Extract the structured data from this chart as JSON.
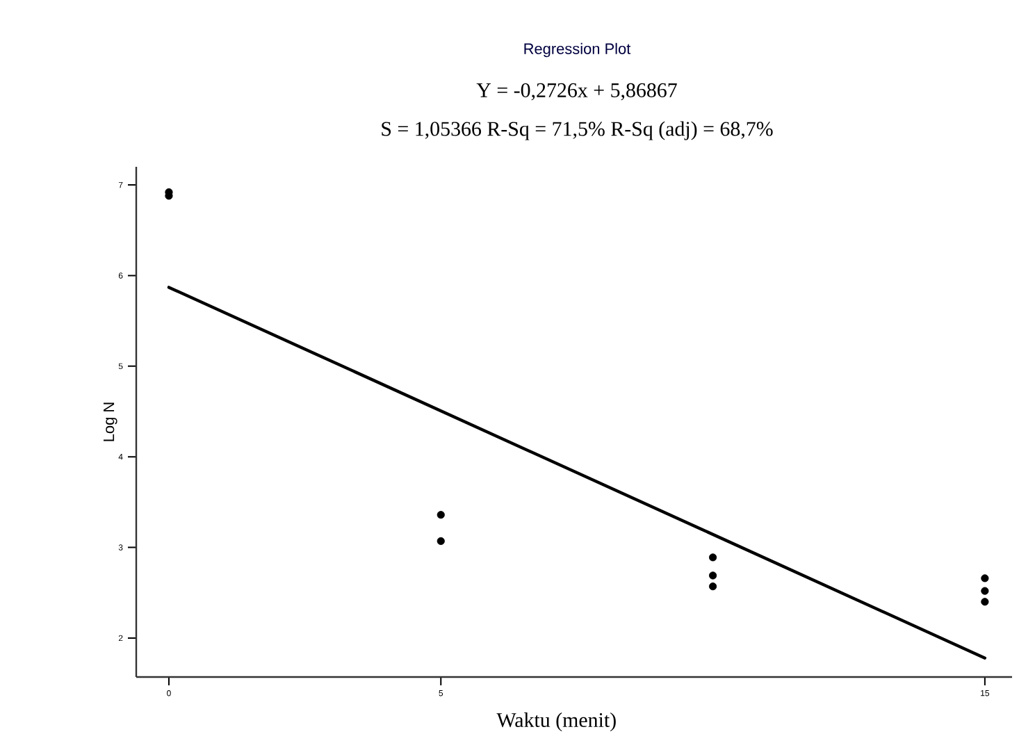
{
  "chart_data": {
    "type": "scatter",
    "title": "Regression Plot",
    "subtitle": "Y = -0,2726x + 5,86867",
    "annotations": [
      "S = 1,05366 R-Sq = 71,5% R-Sq (adj) = 68,7%"
    ],
    "xlabel": "Waktu (menit)",
    "ylabel": "Log N",
    "xlim": [
      -0.6,
      15.5
    ],
    "ylim": [
      1.57,
      7.2
    ],
    "xticks": [
      0,
      5,
      15
    ],
    "yticks": [
      2,
      3,
      4,
      5,
      6,
      7
    ],
    "series": [
      {
        "type": "scatter",
        "marker": "circle",
        "color": "#000000",
        "x": [
          0,
          0,
          5,
          5,
          10,
          10,
          10,
          15,
          15,
          15
        ],
        "values": [
          6.92,
          6.88,
          3.36,
          3.07,
          2.89,
          2.69,
          2.57,
          2.66,
          2.52,
          2.4
        ]
      },
      {
        "type": "line",
        "marker": "none",
        "color": "#000000",
        "x": [
          0,
          15
        ],
        "values": [
          5.87,
          1.78
        ]
      }
    ]
  }
}
